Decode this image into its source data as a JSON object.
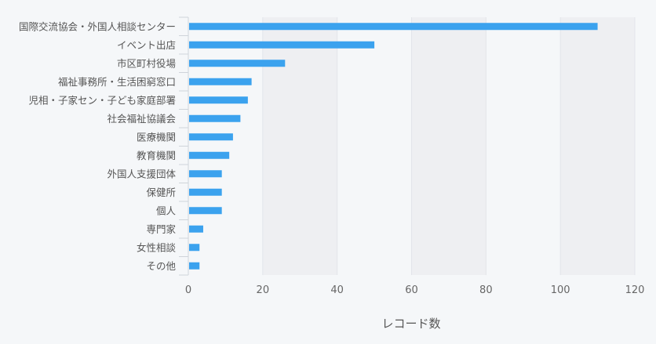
{
  "chart_data": {
    "type": "bar",
    "orientation": "horizontal",
    "categories": [
      "国際交流協会・外国人相談センター",
      "イベント出店",
      "市区町村役場",
      "福祉事務所・生活困窮窓口",
      "児相・子家セン・子ども家庭部署",
      "社会福祉協議会",
      "医療機関",
      "教育機関",
      "外国人支援団体",
      "保健所",
      "個人",
      "専門家",
      "女性相談",
      "その他"
    ],
    "values": [
      110,
      50,
      26,
      17,
      16,
      14,
      12,
      11,
      9,
      9,
      9,
      4,
      3,
      3
    ],
    "xlabel": "レコード数",
    "ylabel": "",
    "xlim": [
      0,
      120
    ],
    "ticks": [
      0,
      20,
      40,
      60,
      80,
      100,
      120
    ],
    "bar_color": "#3ba2ee",
    "band_color": "#eeeff2",
    "grid": true
  }
}
